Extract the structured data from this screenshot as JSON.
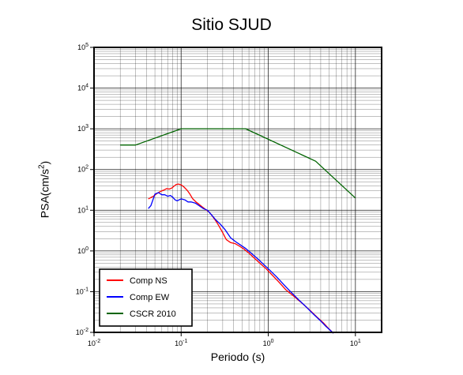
{
  "chart_data": {
    "type": "line",
    "title": "Sitio SJUD",
    "xlabel": "Periodo (s)",
    "ylabel": {
      "base": "PSA(cm/s",
      "sup": "2",
      "end": ")"
    },
    "xscale": "log",
    "yscale": "log",
    "xlim": [
      0.01,
      20
    ],
    "ylim": [
      0.01,
      100000
    ],
    "grid": true,
    "legend_position": "bottom-left",
    "x_ticks": [
      {
        "value": 0.01,
        "base": "10",
        "exp": "-2"
      },
      {
        "value": 0.1,
        "base": "10",
        "exp": "-1"
      },
      {
        "value": 1,
        "base": "10",
        "exp": "0"
      },
      {
        "value": 10,
        "base": "10",
        "exp": "1"
      }
    ],
    "y_ticks": [
      {
        "value": 0.01,
        "base": "10",
        "exp": "-2"
      },
      {
        "value": 0.1,
        "base": "10",
        "exp": "-1"
      },
      {
        "value": 1,
        "base": "10",
        "exp": "0"
      },
      {
        "value": 10,
        "base": "10",
        "exp": "1"
      },
      {
        "value": 100,
        "base": "10",
        "exp": "2"
      },
      {
        "value": 1000,
        "base": "10",
        "exp": "3"
      },
      {
        "value": 10000,
        "base": "10",
        "exp": "4"
      },
      {
        "value": 100000,
        "base": "10",
        "exp": "5"
      }
    ],
    "series": [
      {
        "name": "Comp NS",
        "color": "#ff0000",
        "x": [
          0.042,
          0.048,
          0.053,
          0.058,
          0.063,
          0.068,
          0.073,
          0.078,
          0.083,
          0.088,
          0.093,
          0.1,
          0.108,
          0.117,
          0.126,
          0.136,
          0.148,
          0.16,
          0.175,
          0.19,
          0.21,
          0.23,
          0.25,
          0.27,
          0.3,
          0.33,
          0.37,
          0.42,
          0.47,
          0.53,
          0.6,
          0.7,
          0.8,
          0.95,
          1.1,
          1.3,
          1.6,
          2.0,
          2.5,
          3.0,
          3.6,
          4.3,
          5.0,
          5.6
        ],
        "y": [
          19,
          22,
          26,
          29,
          31,
          34,
          33,
          35,
          39,
          43,
          44,
          42,
          37,
          31,
          25,
          19,
          16,
          14,
          12,
          10.5,
          9,
          7,
          5.5,
          4.2,
          2.8,
          1.9,
          1.6,
          1.5,
          1.3,
          1.1,
          0.88,
          0.65,
          0.5,
          0.36,
          0.26,
          0.18,
          0.11,
          0.075,
          0.05,
          0.035,
          0.024,
          0.017,
          0.012,
          0.0095
        ]
      },
      {
        "name": "Comp EW",
        "color": "#0000ff",
        "x": [
          0.042,
          0.045,
          0.05,
          0.055,
          0.06,
          0.065,
          0.07,
          0.075,
          0.08,
          0.085,
          0.09,
          0.095,
          0.1,
          0.11,
          0.12,
          0.13,
          0.145,
          0.16,
          0.18,
          0.2,
          0.22,
          0.25,
          0.28,
          0.32,
          0.37,
          0.42,
          0.48,
          0.55,
          0.65,
          0.75,
          0.9,
          1.05,
          1.25,
          1.5,
          1.8,
          2.2,
          2.7,
          3.3,
          4.0,
          4.6,
          5.2,
          5.6
        ],
        "y": [
          11,
          13,
          25,
          27,
          24,
          24,
          22,
          23,
          21,
          18,
          17,
          18,
          19,
          18,
          16,
          16,
          15,
          13,
          11,
          10,
          8,
          5.8,
          4.6,
          3.3,
          2.1,
          1.7,
          1.4,
          1.15,
          0.85,
          0.65,
          0.45,
          0.33,
          0.23,
          0.15,
          0.1,
          0.065,
          0.043,
          0.028,
          0.019,
          0.014,
          0.011,
          0.0095
        ]
      },
      {
        "name": "CSCR 2010",
        "color": "#006400",
        "x": [
          0.02,
          0.03,
          0.1,
          0.55,
          3.5,
          10
        ],
        "y": [
          400,
          400,
          1000,
          1000,
          160,
          20
        ]
      }
    ]
  }
}
